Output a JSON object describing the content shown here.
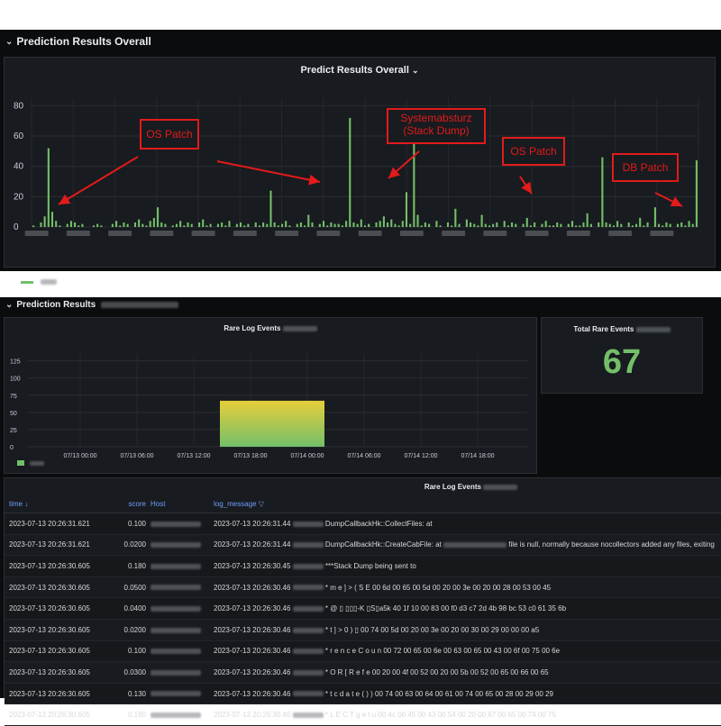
{
  "top": {
    "row_title": "Prediction Results Overall",
    "panel_title": "Predict Results Overall",
    "y_ticks": [
      "80",
      "60",
      "40",
      "20",
      "0"
    ],
    "annotations": [
      "OS Patch",
      "Systemabsturz\n(Stack Dump)",
      "OS Patch",
      "DB Patch"
    ],
    "series_color": "#73bf69",
    "annotation_color": "#e21b1b"
  },
  "bottom": {
    "row_title": "Prediction Results",
    "rare_chart_title": "Rare Log Events",
    "rare_y_ticks": [
      "125",
      "100",
      "75",
      "50",
      "25",
      "0"
    ],
    "rare_x_ticks": [
      "07/13 00:00",
      "07/13 06:00",
      "07/13 12:00",
      "07/13 18:00",
      "07/14 00:00",
      "07/14 06:00",
      "07/14 12:00",
      "07/14 18:00"
    ],
    "total_title": "Total Rare Events",
    "total_value": "67",
    "table_title": "Rare Log Events",
    "columns": {
      "time": "time",
      "score": "score",
      "host": "Host",
      "log_message": "log_message"
    },
    "rows": [
      {
        "time": "2023-07-13 20:26:31.621",
        "score": "0.100",
        "msg_time": "2023-07-13 20:26:31.44",
        "msg": "DumpCallbackHk::CollectFiles: at"
      },
      {
        "time": "2023-07-13 20:26:31.621",
        "score": "0.0200",
        "msg_time": "2023-07-13 20:26:31.44",
        "msg": "DumpCallbackHk::CreateCabFile: at",
        "msg2": "file is null, normally because nocollectors added any files, exiting"
      },
      {
        "time": "2023-07-13 20:26:30.605",
        "score": "0.180",
        "msg_time": "2023-07-13 20:26:30.45",
        "msg": "***Stack Dump being sent to"
      },
      {
        "time": "2023-07-13 20:26:30.605",
        "score": "0.0500",
        "msg_time": "2023-07-13 20:26:30.46",
        "msg": "* m e ] > ( S E 00 6d 00 65 00 5d 00 20 00 3e 00 20 00 28 00 53 00 45"
      },
      {
        "time": "2023-07-13 20:26:30.605",
        "score": "0.0400",
        "msg_time": "2023-07-13 20:26:30.46",
        "msg": "* @ ▯ ▯▯▯-K ▯S▯a5k 40 1f 10 00 83 00 f0 d3 c7 2d 4b 98 bc 53 c0 61 35 6b"
      },
      {
        "time": "2023-07-13 20:26:30.605",
        "score": "0.0200",
        "msg_time": "2023-07-13 20:26:30.46",
        "msg": "* t ] > 0 ) ▯ 00 74 00 5d 00 20 00 3e 00 20 00 30 00 29 00 00 00 a5"
      },
      {
        "time": "2023-07-13 20:26:30.605",
        "score": "0.100",
        "msg_time": "2023-07-13 20:26:30.46",
        "msg": "* r e n c e C o u n 00 72 00 65 00 6e 00 63 00 65 00 43 00 6f 00 75 00 6e"
      },
      {
        "time": "2023-07-13 20:26:30.605",
        "score": "0.0300",
        "msg_time": "2023-07-13 20:26:30.46",
        "msg": "* O R [ R e f e 00 20 00 4f 00 52 00 20 00 5b 00 52 00 65 00 66 00 65"
      },
      {
        "time": "2023-07-13 20:26:30.605",
        "score": "0.130",
        "msg_time": "2023-07-13 20:26:30.46",
        "msg": "* t c d a t e ( ) ) 00 74 00 63 00 64 00 61 00 74 00 65 00 28 00 29 00 29"
      },
      {
        "time": "2023-07-13 20:26:30.605",
        "score": "0.160",
        "msg_time": "2023-07-13 20:26:30.46",
        "msg": "* L E C T g e t u 00 4c 00 45 00 43 00 54 00 20 00 67 00 65 00 74 00 75"
      }
    ]
  },
  "chart_data": [
    {
      "type": "bar",
      "title": "Predict Results Overall",
      "ylim": [
        0,
        85
      ],
      "grid": true,
      "series": [
        {
          "values": [
            1,
            0,
            3,
            7,
            52,
            10,
            4,
            1,
            0,
            2,
            4,
            3,
            1,
            2,
            0,
            0,
            1,
            2,
            1,
            0,
            0,
            2,
            4,
            1,
            3,
            2,
            0,
            3,
            5,
            2,
            1,
            4,
            6,
            13,
            3,
            2,
            0,
            1,
            2,
            4,
            1,
            3,
            2,
            0,
            3,
            5,
            1,
            2,
            0,
            2,
            3,
            1,
            4,
            0,
            2,
            3,
            1,
            2,
            0,
            3,
            1,
            3,
            2,
            24,
            3,
            1,
            2,
            4,
            1,
            0,
            2,
            3,
            1,
            8,
            3,
            0,
            2,
            4,
            1,
            3,
            2,
            2,
            1,
            4,
            72,
            3,
            2,
            5,
            1,
            2,
            0,
            3,
            4,
            7,
            3,
            5,
            2,
            1,
            4,
            23,
            2,
            67,
            8,
            1,
            3,
            2,
            0,
            4,
            1,
            0,
            3,
            1,
            12,
            2,
            0,
            5,
            3,
            2,
            1,
            8,
            2,
            1,
            2,
            3,
            0,
            4,
            1,
            3,
            2,
            0,
            2,
            6,
            1,
            3,
            0,
            2,
            4,
            1,
            1,
            3,
            2,
            0,
            2,
            4,
            1,
            1,
            3,
            9,
            2,
            0,
            3,
            46,
            3,
            2,
            1,
            4,
            2,
            0,
            3,
            1,
            2,
            6,
            1,
            3,
            0,
            13,
            2,
            1,
            3,
            2,
            0,
            2,
            3,
            1,
            4,
            2,
            44
          ]
        }
      ]
    },
    {
      "type": "bar",
      "title": "Rare Log Events",
      "categories": [
        "07/13 18:00"
      ],
      "values": [
        67
      ],
      "ylim": [
        0,
        135
      ]
    }
  ]
}
